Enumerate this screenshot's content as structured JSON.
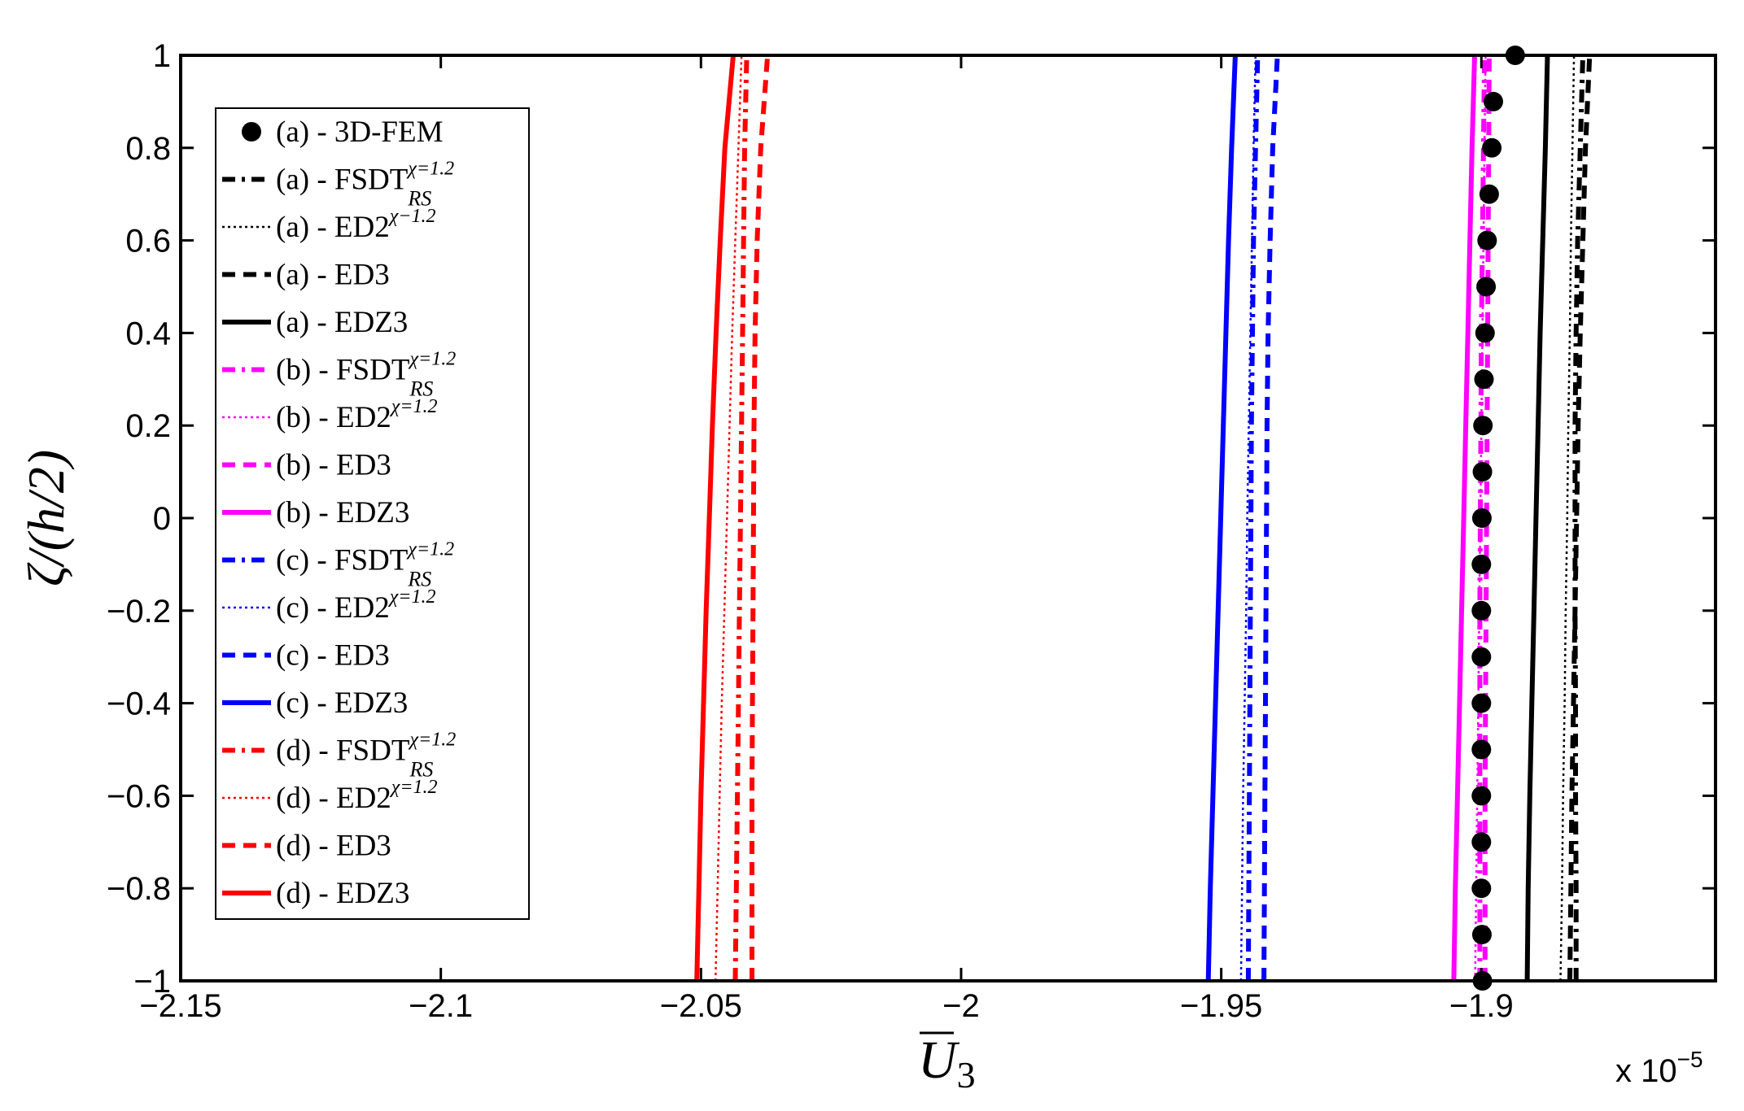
{
  "chart_data": {
    "type": "line",
    "xlabel": "U3",
    "xlabel_main": "U",
    "xlabel_sub": "3",
    "ylabel": "ζ/(h/2)",
    "x_multiplier": "x 10",
    "x_multiplier_exp": "−5",
    "xlim": [
      -2.15,
      -1.855
    ],
    "ylim": [
      -1,
      1
    ],
    "xticks": [
      -2.15,
      -2.1,
      -2.05,
      -2.0,
      -1.95,
      -1.9
    ],
    "xtick_labels": [
      "−2.15",
      "−2.1",
      "−2.05",
      "−2",
      "−1.95",
      "−1.9"
    ],
    "yticks": [
      1,
      0.8,
      0.6,
      0.4,
      0.2,
      0,
      -0.2,
      -0.4,
      -0.6,
      -0.8,
      -1
    ],
    "ytick_labels": [
      "1",
      "0.8",
      "0.6",
      "0.4",
      "0.2",
      "0",
      "−0.2",
      "−0.4",
      "−0.6",
      "−0.8",
      "−1"
    ],
    "grid": false,
    "legend_position": "top-left",
    "y": [
      -1,
      -0.8,
      -0.6,
      -0.4,
      -0.2,
      0,
      0.2,
      0.4,
      0.6,
      0.8,
      1
    ],
    "series": [
      {
        "name": "(a) - 3D-FEM",
        "color": "#000000",
        "style": "marker",
        "y": [
          -1,
          -0.9,
          -0.8,
          -0.7,
          -0.6,
          -0.5,
          -0.4,
          -0.3,
          -0.2,
          -0.1,
          0,
          0.1,
          0.2,
          0.3,
          0.4,
          0.5,
          0.6,
          0.7,
          0.8,
          0.9,
          1
        ],
        "x": [
          -1.8998,
          -1.8999,
          -1.9,
          -1.9,
          -1.9,
          -1.9,
          -1.9,
          -1.9,
          -1.9,
          -1.9,
          -1.8999,
          -1.8998,
          -1.8997,
          -1.8995,
          -1.8993,
          -1.8991,
          -1.8989,
          -1.8985,
          -1.898,
          -1.8977,
          -1.8935
        ]
      },
      {
        "name": "(a) - FSDT",
        "sup": "χ=1.2",
        "sub": "RS",
        "color": "#000000",
        "style": "dashdot",
        "x": [
          -1.8818,
          -1.8818,
          -1.8819,
          -1.8819,
          -1.882,
          -1.882,
          -1.882,
          -1.8818,
          -1.8815,
          -1.881,
          -1.8805
        ]
      },
      {
        "name": "(a) - ED2",
        "sup": "χ−1.2",
        "color": "#000000",
        "style": "dotted",
        "x": [
          -1.8848,
          -1.8845,
          -1.8843,
          -1.884,
          -1.8838,
          -1.8835,
          -1.8833,
          -1.883,
          -1.8828,
          -1.8825,
          -1.8822
        ]
      },
      {
        "name": "(a) - ED3",
        "color": "#000000",
        "style": "dashed",
        "x": [
          -1.883,
          -1.8828,
          -1.8826,
          -1.8823,
          -1.882,
          -1.8817,
          -1.8814,
          -1.881,
          -1.8805,
          -1.88,
          -1.8792
        ]
      },
      {
        "name": "(a) - EDZ3",
        "color": "#000000",
        "style": "solid",
        "x": [
          -1.8912,
          -1.891,
          -1.8907,
          -1.8903,
          -1.8899,
          -1.8895,
          -1.8891,
          -1.8887,
          -1.8882,
          -1.8877,
          -1.8873
        ]
      },
      {
        "name": "(b) - FSDT",
        "sup": "χ=1.2",
        "sub": "RS",
        "color": "#ff00ff",
        "style": "dashdot",
        "x": [
          -1.9003,
          -1.9003,
          -1.9003,
          -1.9003,
          -1.9003,
          -1.9002,
          -1.9001,
          -1.9,
          -1.8998,
          -1.8996,
          -1.8994
        ]
      },
      {
        "name": "(b) - ED2",
        "sup": "χ=1.2",
        "color": "#ff00ff",
        "style": "dotted",
        "x": [
          -1.9012,
          -1.901,
          -1.9008,
          -1.9006,
          -1.9004,
          -1.9002,
          -1.9,
          -1.8998,
          -1.8996,
          -1.8994,
          -1.8992
        ]
      },
      {
        "name": "(b) - ED3",
        "color": "#ff00ff",
        "style": "dashed",
        "x": [
          -1.8993,
          -1.8993,
          -1.8993,
          -1.8992,
          -1.8991,
          -1.899,
          -1.8989,
          -1.8988,
          -1.8987,
          -1.8986,
          -1.8985
        ]
      },
      {
        "name": "(b) - EDZ3",
        "color": "#ff00ff",
        "style": "solid",
        "x": [
          -1.9053,
          -1.905,
          -1.9046,
          -1.9042,
          -1.9038,
          -1.9034,
          -1.903,
          -1.9026,
          -1.9022,
          -1.9018,
          -1.9013
        ]
      },
      {
        "name": "(c) - FSDT",
        "sup": "χ=1.2",
        "sub": "RS",
        "color": "#0000ff",
        "style": "dashdot",
        "x": [
          -1.9448,
          -1.9447,
          -1.9446,
          -1.9445,
          -1.9444,
          -1.9443,
          -1.9442,
          -1.944,
          -1.9438,
          -1.9434,
          -1.943
        ]
      },
      {
        "name": "(c) - ED2",
        "sup": "χ=1.2",
        "color": "#0000ff",
        "style": "dotted",
        "x": [
          -1.9462,
          -1.946,
          -1.9458,
          -1.9455,
          -1.9452,
          -1.945,
          -1.9447,
          -1.9444,
          -1.9441,
          -1.9438,
          -1.9434
        ]
      },
      {
        "name": "(c) - ED3",
        "color": "#0000ff",
        "style": "dashed",
        "x": [
          -1.9418,
          -1.9417,
          -1.9416,
          -1.9415,
          -1.9414,
          -1.9413,
          -1.9412,
          -1.941,
          -1.9406,
          -1.9401,
          -1.9392
        ]
      },
      {
        "name": "(c) - EDZ3",
        "color": "#0000ff",
        "style": "solid",
        "x": [
          -1.9525,
          -1.9521,
          -1.9516,
          -1.9511,
          -1.9506,
          -1.9501,
          -1.9496,
          -1.9491,
          -1.9486,
          -1.948,
          -1.9473
        ]
      },
      {
        "name": "(d) - FSDT",
        "sup": "χ=1.2",
        "sub": "RS",
        "color": "#ff0000",
        "style": "dashdot",
        "x": [
          -2.0434,
          -2.0432,
          -2.043,
          -2.0428,
          -2.0426,
          -2.0424,
          -2.0422,
          -2.042,
          -2.0418,
          -2.0416,
          -2.0412
        ]
      },
      {
        "name": "(d) - ED2",
        "sup": "χ=1.2",
        "color": "#ff0000",
        "style": "dotted",
        "x": [
          -2.0472,
          -2.0468,
          -2.0464,
          -2.046,
          -2.0455,
          -2.045,
          -2.0445,
          -2.044,
          -2.0434,
          -2.0428,
          -2.0422
        ]
      },
      {
        "name": "(d) - ED3",
        "color": "#ff0000",
        "style": "dashed",
        "x": [
          -2.0402,
          -2.0402,
          -2.0402,
          -2.0401,
          -2.04,
          -2.0399,
          -2.0398,
          -2.0396,
          -2.0392,
          -2.0385,
          -2.0372
        ]
      },
      {
        "name": "(d) - EDZ3",
        "color": "#ff0000",
        "style": "solid",
        "x": [
          -2.0508,
          -2.0504,
          -2.05,
          -2.0495,
          -2.049,
          -2.0484,
          -2.0478,
          -2.0471,
          -2.0463,
          -2.0454,
          -2.0438
        ]
      }
    ]
  }
}
